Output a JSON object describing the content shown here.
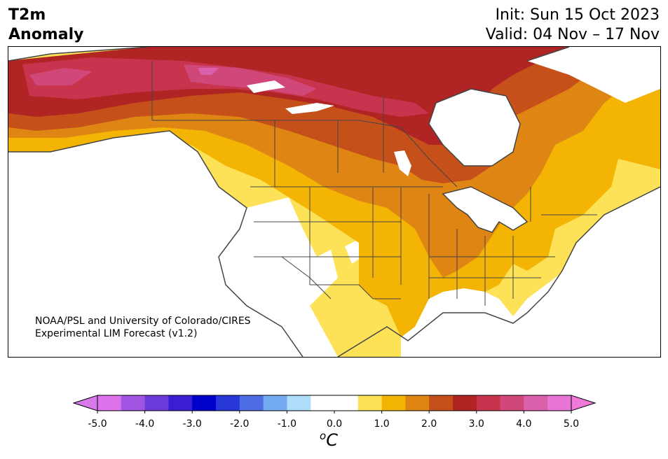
{
  "title": {
    "left_line1": "T2m",
    "left_line2": "Anomaly",
    "init": "Init: Sun 15 Oct 2023",
    "valid": "Valid: 04 Nov – 17 Nov"
  },
  "credit": {
    "line1": "NOAA/PSL and University of Colorado/CIRES",
    "line2": "Experimental LIM Forecast (v1.2)"
  },
  "map": {
    "region": "North America",
    "field": "2m temperature anomaly",
    "warmest_area": "northern Canada",
    "neutral_area": "US West Coast / Southwest"
  },
  "colorbar": {
    "unit_base": "C",
    "unit_sup": "o",
    "ticks": [
      "-5.0",
      "-4.0",
      "-3.0",
      "-2.0",
      "-1.0",
      "0.0",
      "1.0",
      "2.0",
      "3.0",
      "4.0",
      "5.0"
    ],
    "bins": [
      "#dd73ea",
      "#a154e1",
      "#6b3bd9",
      "#3a1ed3",
      "#0000cc",
      "#2737d8",
      "#4e6ce3",
      "#74abf0",
      "#aedcfa",
      "#ffffff",
      "#ffffff",
      "#fde257",
      "#f4b404",
      "#df8513",
      "#c6501a",
      "#b02424",
      "#c8344d",
      "#d0477a",
      "#db60ab",
      "#e775d5"
    ],
    "under_color": "#d67aea",
    "over_color": "#f07ad8"
  }
}
